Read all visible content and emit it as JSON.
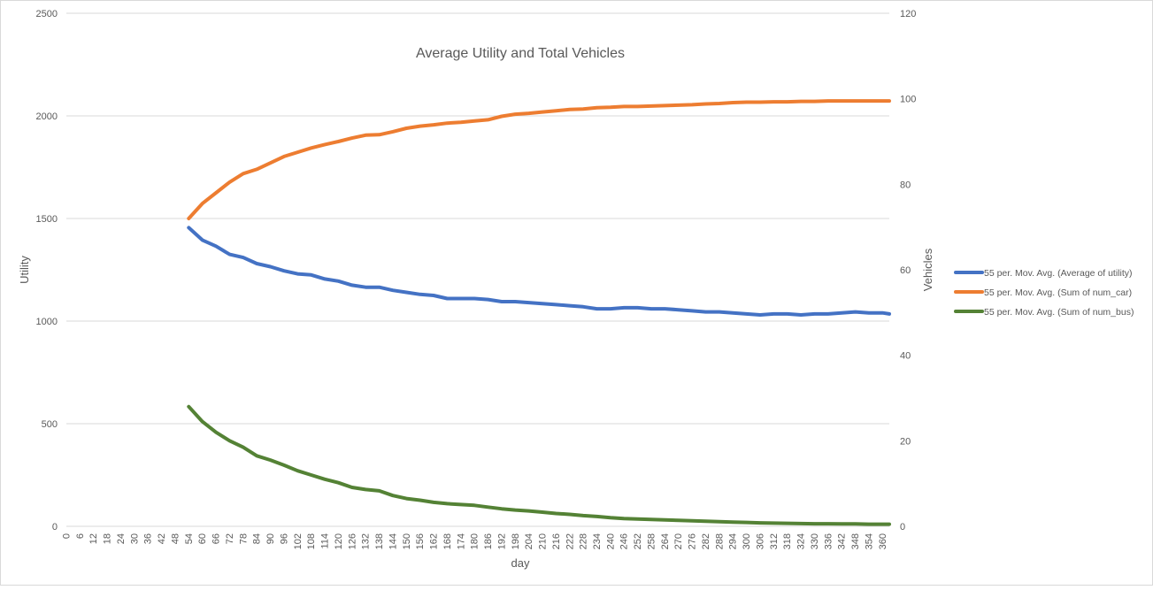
{
  "chart_data": {
    "type": "line",
    "title": "Average Utility and Total Vehicles",
    "xlabel": "day",
    "ylabel": "Utility",
    "y2label": "Vehicles",
    "xlim": [
      0,
      363
    ],
    "ylim": [
      0,
      2500
    ],
    "y2lim": [
      0,
      120
    ],
    "x_tick_labels": [
      "0",
      "6",
      "12",
      "18",
      "24",
      "30",
      "36",
      "42",
      "48",
      "54",
      "60",
      "66",
      "72",
      "78",
      "84",
      "90",
      "96",
      "102",
      "108",
      "114",
      "120",
      "126",
      "132",
      "138",
      "144",
      "150",
      "156",
      "162",
      "168",
      "174",
      "180",
      "186",
      "192",
      "198",
      "204",
      "210",
      "216",
      "222",
      "228",
      "234",
      "240",
      "246",
      "252",
      "258",
      "264",
      "270",
      "276",
      "282",
      "288",
      "294",
      "300",
      "306",
      "312",
      "318",
      "324",
      "330",
      "336",
      "342",
      "348",
      "354",
      "360"
    ],
    "y_tick_labels": [
      "0",
      "500",
      "1000",
      "1500",
      "2000",
      "2500"
    ],
    "y2_tick_labels": [
      "0",
      "20",
      "40",
      "60",
      "80",
      "100",
      "120"
    ],
    "grid": true,
    "legend_position": "right",
    "series": [
      {
        "name": "55 per. Mov. Avg. (Average of utility)",
        "axis": "left",
        "color": "#4472c4",
        "x": [
          54,
          60,
          66,
          72,
          78,
          84,
          90,
          96,
          102,
          108,
          114,
          120,
          126,
          132,
          138,
          144,
          150,
          156,
          162,
          168,
          174,
          180,
          186,
          192,
          198,
          204,
          210,
          216,
          222,
          228,
          234,
          240,
          246,
          252,
          258,
          264,
          270,
          276,
          282,
          288,
          294,
          300,
          306,
          312,
          318,
          324,
          330,
          336,
          342,
          348,
          354,
          360,
          363
        ],
        "y": [
          1455,
          1395,
          1365,
          1325,
          1310,
          1280,
          1265,
          1245,
          1230,
          1225,
          1205,
          1195,
          1175,
          1165,
          1165,
          1150,
          1140,
          1130,
          1125,
          1110,
          1110,
          1110,
          1105,
          1095,
          1095,
          1090,
          1085,
          1080,
          1075,
          1070,
          1060,
          1060,
          1065,
          1065,
          1060,
          1060,
          1055,
          1050,
          1045,
          1045,
          1040,
          1035,
          1030,
          1035,
          1035,
          1030,
          1035,
          1035,
          1040,
          1045,
          1040,
          1040,
          1035
        ]
      },
      {
        "name": "55 per. Mov. Avg. (Sum of num_car)",
        "axis": "right",
        "color": "#ed7d31",
        "x": [
          54,
          60,
          66,
          72,
          78,
          84,
          90,
          96,
          102,
          108,
          114,
          120,
          126,
          132,
          138,
          144,
          150,
          156,
          162,
          168,
          174,
          180,
          186,
          192,
          198,
          204,
          210,
          216,
          222,
          228,
          234,
          240,
          246,
          252,
          258,
          264,
          270,
          276,
          282,
          288,
          294,
          300,
          306,
          312,
          318,
          324,
          330,
          336,
          342,
          348,
          354,
          360,
          363
        ],
        "y": [
          72,
          75.5,
          78,
          80.5,
          82.5,
          83.5,
          85,
          86.5,
          87.5,
          88.5,
          89.3,
          90,
          90.8,
          91.5,
          91.6,
          92.3,
          93.1,
          93.6,
          93.9,
          94.3,
          94.5,
          94.8,
          95.1,
          95.9,
          96.4,
          96.6,
          96.9,
          97.2,
          97.5,
          97.6,
          97.9,
          98,
          98.2,
          98.2,
          98.3,
          98.4,
          98.5,
          98.6,
          98.8,
          98.9,
          99.1,
          99.2,
          99.2,
          99.3,
          99.3,
          99.4,
          99.4,
          99.5,
          99.5,
          99.5,
          99.5,
          99.5,
          99.5
        ]
      },
      {
        "name": "55 per. Mov. Avg. (Sum of num_bus)",
        "axis": "right",
        "color": "#548235",
        "x": [
          54,
          60,
          66,
          72,
          78,
          84,
          90,
          96,
          102,
          108,
          114,
          120,
          126,
          132,
          138,
          144,
          150,
          156,
          162,
          168,
          174,
          180,
          186,
          192,
          198,
          204,
          210,
          216,
          222,
          228,
          234,
          240,
          246,
          252,
          258,
          264,
          270,
          276,
          282,
          288,
          294,
          300,
          306,
          312,
          318,
          324,
          330,
          336,
          342,
          348,
          354,
          360,
          363
        ],
        "y": [
          28,
          24.5,
          22,
          20,
          18.5,
          16.5,
          15.5,
          14.3,
          13,
          12,
          11,
          10.2,
          9.1,
          8.6,
          8.3,
          7.2,
          6.5,
          6.1,
          5.6,
          5.3,
          5.1,
          4.9,
          4.5,
          4.1,
          3.8,
          3.6,
          3.3,
          3,
          2.8,
          2.5,
          2.3,
          2,
          1.8,
          1.7,
          1.6,
          1.5,
          1.4,
          1.3,
          1.2,
          1.1,
          1,
          0.9,
          0.8,
          0.75,
          0.7,
          0.65,
          0.6,
          0.6,
          0.55,
          0.55,
          0.5,
          0.5,
          0.5
        ]
      }
    ]
  }
}
